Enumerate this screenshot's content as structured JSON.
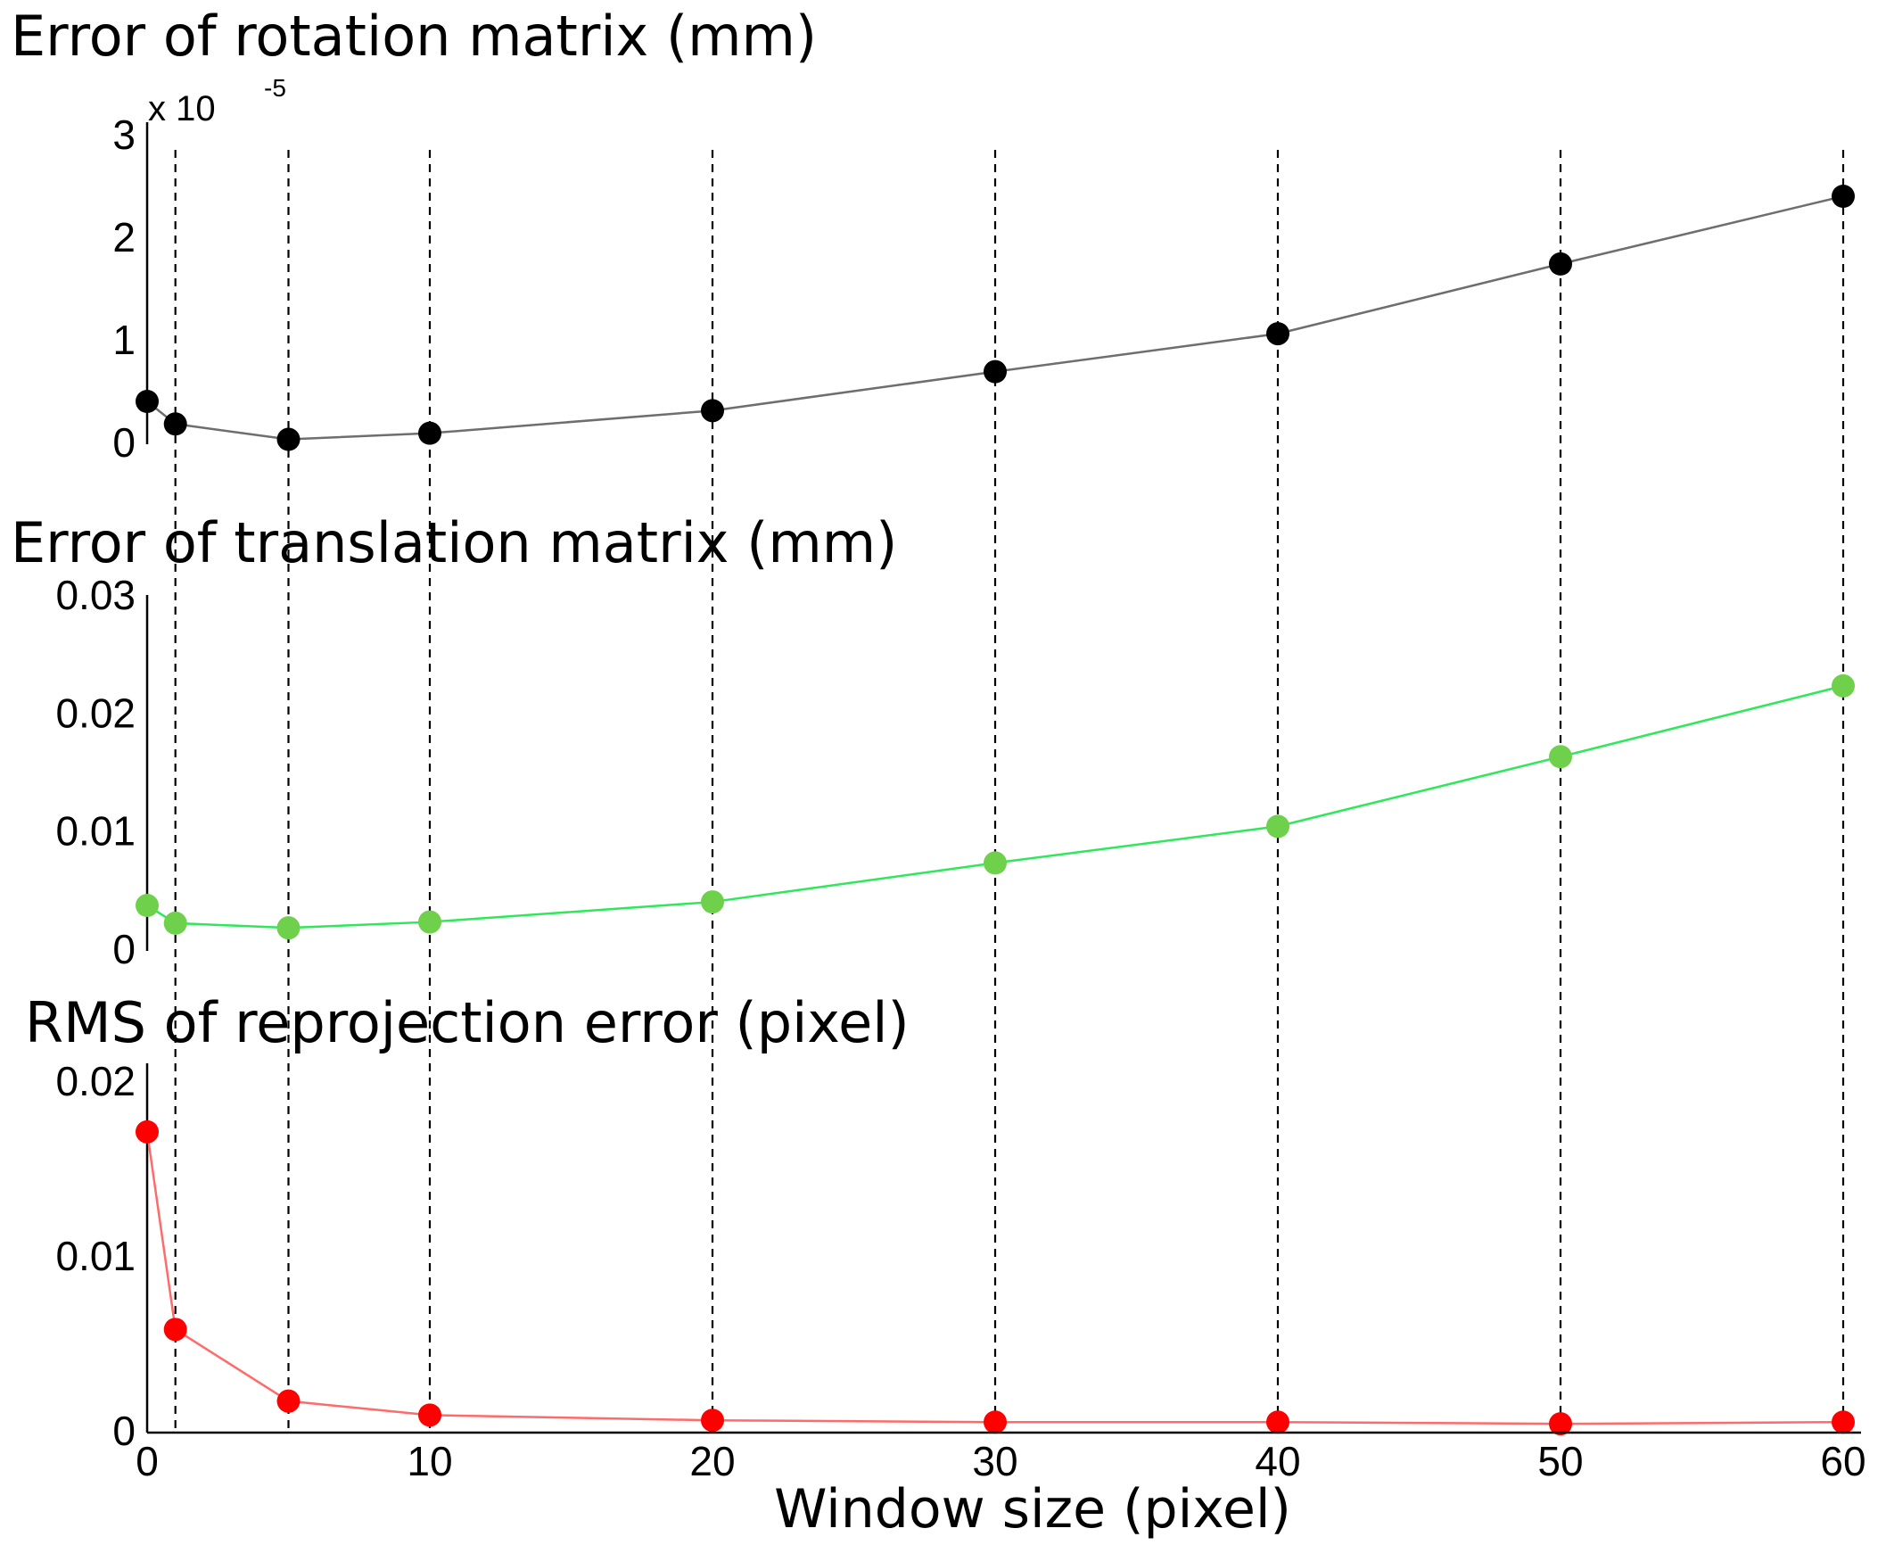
{
  "chart_data": {
    "x_label": "Window size (pixel)",
    "x_ticks": [
      0,
      10,
      20,
      30,
      40,
      50,
      60
    ],
    "x_range": [
      0,
      60
    ],
    "x": [
      0,
      1,
      5,
      10,
      20,
      30,
      40,
      50,
      60
    ],
    "panels": [
      {
        "type": "line",
        "title": "Error of rotation matrix (mm)",
        "exponent_prefix": "x 10",
        "exponent_value": "-5",
        "y_range": [
          0,
          3
        ],
        "y_ticks": [
          "3",
          "2",
          "1",
          "0"
        ],
        "y_tick_values": [
          3,
          2,
          1,
          0
        ],
        "values": [
          0.4,
          0.18,
          0.03,
          0.09,
          0.31,
          0.69,
          1.06,
          1.74,
          2.4
        ],
        "color": "#000000",
        "line_color": "#6e6e6e"
      },
      {
        "type": "line",
        "title": "Error of translation matrix (mm)",
        "y_range": [
          0,
          0.03
        ],
        "y_ticks": [
          "0.03",
          "0.02",
          "0.01",
          "0"
        ],
        "y_tick_values": [
          0.03,
          0.02,
          0.01,
          0
        ],
        "values": [
          0.0037,
          0.0022,
          0.0018,
          0.0023,
          0.004,
          0.0073,
          0.0104,
          0.0163,
          0.0223
        ],
        "color": "#6fd14b",
        "line_color": "#2ee85a"
      },
      {
        "type": "line",
        "title": "RMS of reprojection error (pixel)",
        "y_range": [
          0,
          0.02
        ],
        "y_ticks": [
          "0.02",
          "0.01",
          "0"
        ],
        "y_tick_values": [
          0.02,
          0.01,
          0
        ],
        "values": [
          0.0171,
          0.0058,
          0.0017,
          0.0009,
          0.0006,
          0.0005,
          0.0005,
          0.0004,
          0.0005
        ],
        "color": "#ff0000",
        "line_color": "#ff6a6a"
      }
    ]
  }
}
